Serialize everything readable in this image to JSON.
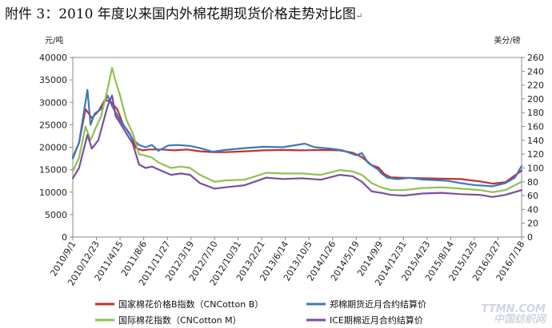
{
  "page": {
    "title": "附件 3：2010 年度以来国内外棉花期现货价格走势对比图",
    "title_mark": "↵"
  },
  "watermark": {
    "line1": "TTMN.COM",
    "line2": "中国纺织网"
  },
  "chart_data": {
    "type": "line",
    "left_unit": "元/吨",
    "right_unit": "美分/磅",
    "y_left": {
      "min": 0,
      "max": 40000,
      "step": 5000
    },
    "y_right": {
      "min": 0,
      "max": 260,
      "step": 20
    },
    "x_range": [
      "2010-09-01",
      "2016-07-18"
    ],
    "x_tick_labels": [
      "2010/9/1",
      "2010/12/23",
      "2011/4/15",
      "2011/8/6",
      "2011/11/27",
      "2012/3/19",
      "2012/7/10",
      "2012/10/31",
      "2013/2/21",
      "2013/6/14",
      "2013/10/5",
      "2014/1/26",
      "2014/5/19",
      "2014/9/9",
      "2014/12/31",
      "2015/4/23",
      "2015/8/14",
      "2015/12/5",
      "2016/3/27",
      "2016/7/18"
    ],
    "grid": false,
    "legend_position": "bottom",
    "series": [
      {
        "name": "国家棉花价格B指数（CNCotton B）",
        "axis": "left",
        "color": "#c0312f",
        "points": [
          [
            "2010-09-01",
            17800
          ],
          [
            "2010-10-01",
            21000
          ],
          [
            "2010-11-01",
            28500
          ],
          [
            "2010-12-01",
            26500
          ],
          [
            "2011-01-01",
            28000
          ],
          [
            "2011-02-01",
            30500
          ],
          [
            "2011-03-01",
            30200
          ],
          [
            "2011-04-01",
            28500
          ],
          [
            "2011-05-01",
            25000
          ],
          [
            "2011-06-01",
            23000
          ],
          [
            "2011-07-01",
            19800
          ],
          [
            "2011-08-01",
            19300
          ],
          [
            "2011-09-01",
            19500
          ],
          [
            "2011-11-01",
            19500
          ],
          [
            "2012-01-01",
            19300
          ],
          [
            "2012-03-01",
            19500
          ],
          [
            "2012-05-01",
            19100
          ],
          [
            "2012-07-01",
            18900
          ],
          [
            "2012-09-01",
            18900
          ],
          [
            "2012-12-01",
            19100
          ],
          [
            "2013-03-01",
            19300
          ],
          [
            "2013-06-01",
            19400
          ],
          [
            "2013-09-01",
            19300
          ],
          [
            "2013-12-01",
            19400
          ],
          [
            "2014-03-01",
            19300
          ],
          [
            "2014-05-01",
            18800
          ],
          [
            "2014-06-15",
            17800
          ],
          [
            "2014-08-01",
            16000
          ],
          [
            "2014-09-01",
            15500
          ],
          [
            "2014-10-01",
            14000
          ],
          [
            "2014-11-01",
            13300
          ],
          [
            "2015-01-01",
            13200
          ],
          [
            "2015-04-01",
            13100
          ],
          [
            "2015-07-01",
            13000
          ],
          [
            "2015-10-01",
            12900
          ],
          [
            "2016-01-01",
            12400
          ],
          [
            "2016-03-01",
            11900
          ],
          [
            "2016-05-01",
            12200
          ],
          [
            "2016-07-18",
            14800
          ]
        ]
      },
      {
        "name": "郑棉期货近月合约结算价",
        "axis": "left",
        "color": "#3c78c0",
        "points": [
          [
            "2010-09-01",
            17500
          ],
          [
            "2010-10-01",
            21000
          ],
          [
            "2010-11-10",
            32800
          ],
          [
            "2010-11-25",
            25000
          ],
          [
            "2010-12-15",
            27500
          ],
          [
            "2011-01-15",
            28500
          ],
          [
            "2011-02-15",
            31500
          ],
          [
            "2011-03-10",
            29000
          ],
          [
            "2011-04-15",
            26000
          ],
          [
            "2011-05-15",
            24000
          ],
          [
            "2011-06-15",
            21800
          ],
          [
            "2011-07-15",
            20500
          ],
          [
            "2011-08-15",
            20000
          ],
          [
            "2011-09-15",
            20500
          ],
          [
            "2011-10-15",
            19200
          ],
          [
            "2011-12-01",
            20400
          ],
          [
            "2012-01-15",
            20500
          ],
          [
            "2012-03-15",
            20300
          ],
          [
            "2012-05-01",
            19800
          ],
          [
            "2012-07-01",
            19000
          ],
          [
            "2012-09-01",
            19400
          ],
          [
            "2012-12-01",
            19800
          ],
          [
            "2013-03-01",
            20100
          ],
          [
            "2013-06-01",
            20000
          ],
          [
            "2013-09-15",
            20800
          ],
          [
            "2013-11-01",
            20000
          ],
          [
            "2014-01-15",
            19700
          ],
          [
            "2014-03-15",
            19300
          ],
          [
            "2014-05-19",
            18200
          ],
          [
            "2014-06-15",
            18700
          ],
          [
            "2014-07-15",
            16500
          ],
          [
            "2014-09-01",
            15000
          ],
          [
            "2014-09-15",
            14200
          ],
          [
            "2014-10-15",
            13200
          ],
          [
            "2014-12-01",
            12900
          ],
          [
            "2015-02-01",
            13200
          ],
          [
            "2015-04-01",
            12800
          ],
          [
            "2015-06-01",
            12700
          ],
          [
            "2015-08-01",
            12500
          ],
          [
            "2015-10-01",
            12000
          ],
          [
            "2015-12-01",
            11600
          ],
          [
            "2016-03-01",
            11300
          ],
          [
            "2016-05-01",
            12000
          ],
          [
            "2016-06-15",
            13200
          ],
          [
            "2016-07-18",
            15800
          ]
        ]
      },
      {
        "name": "国际棉花指数（CNCotton M）",
        "axis": "right",
        "color": "#92c050",
        "points": [
          [
            "2010-09-01",
            95
          ],
          [
            "2010-10-01",
            115
          ],
          [
            "2010-11-01",
            160
          ],
          [
            "2010-11-25",
            140
          ],
          [
            "2010-12-15",
            155
          ],
          [
            "2011-01-15",
            175
          ],
          [
            "2011-02-15",
            215
          ],
          [
            "2011-03-08",
            245
          ],
          [
            "2011-03-25",
            225
          ],
          [
            "2011-04-15",
            205
          ],
          [
            "2011-05-15",
            170
          ],
          [
            "2011-06-15",
            150
          ],
          [
            "2011-07-15",
            120
          ],
          [
            "2011-08-15",
            118
          ],
          [
            "2011-09-15",
            115
          ],
          [
            "2011-10-15",
            108
          ],
          [
            "2011-12-15",
            100
          ],
          [
            "2012-02-01",
            102
          ],
          [
            "2012-03-15",
            100
          ],
          [
            "2012-05-01",
            90
          ],
          [
            "2012-07-10",
            80
          ],
          [
            "2012-09-01",
            82
          ],
          [
            "2012-12-01",
            83
          ],
          [
            "2013-03-15",
            93
          ],
          [
            "2013-06-01",
            92
          ],
          [
            "2013-09-01",
            92
          ],
          [
            "2013-12-01",
            90
          ],
          [
            "2014-03-01",
            97
          ],
          [
            "2014-05-01",
            95
          ],
          [
            "2014-06-15",
            90
          ],
          [
            "2014-08-01",
            78
          ],
          [
            "2014-09-15",
            72
          ],
          [
            "2014-11-01",
            68
          ],
          [
            "2015-01-01",
            68
          ],
          [
            "2015-04-01",
            71
          ],
          [
            "2015-07-01",
            72
          ],
          [
            "2015-10-01",
            70
          ],
          [
            "2016-01-01",
            68
          ],
          [
            "2016-03-01",
            65
          ],
          [
            "2016-05-01",
            68
          ],
          [
            "2016-07-18",
            80
          ]
        ]
      },
      {
        "name": "ICE期棉近月合约结算价",
        "axis": "right",
        "color": "#7a4fa0",
        "points": [
          [
            "2010-09-01",
            85
          ],
          [
            "2010-10-01",
            100
          ],
          [
            "2010-11-10",
            148
          ],
          [
            "2010-12-01",
            128
          ],
          [
            "2011-01-01",
            140
          ],
          [
            "2011-02-15",
            190
          ],
          [
            "2011-03-08",
            205
          ],
          [
            "2011-03-25",
            175
          ],
          [
            "2011-04-15",
            165
          ],
          [
            "2011-05-15",
            150
          ],
          [
            "2011-06-15",
            135
          ],
          [
            "2011-07-15",
            105
          ],
          [
            "2011-08-15",
            100
          ],
          [
            "2011-09-15",
            102
          ],
          [
            "2011-10-15",
            98
          ],
          [
            "2011-12-15",
            90
          ],
          [
            "2012-02-01",
            92
          ],
          [
            "2012-03-15",
            90
          ],
          [
            "2012-05-01",
            78
          ],
          [
            "2012-07-10",
            70
          ],
          [
            "2012-09-01",
            72
          ],
          [
            "2012-12-01",
            75
          ],
          [
            "2013-03-15",
            86
          ],
          [
            "2013-06-01",
            84
          ],
          [
            "2013-09-01",
            85
          ],
          [
            "2013-12-01",
            83
          ],
          [
            "2014-03-01",
            90
          ],
          [
            "2014-05-01",
            88
          ],
          [
            "2014-06-15",
            80
          ],
          [
            "2014-08-01",
            66
          ],
          [
            "2014-09-15",
            64
          ],
          [
            "2014-11-01",
            61
          ],
          [
            "2015-01-01",
            60
          ],
          [
            "2015-04-01",
            63
          ],
          [
            "2015-07-01",
            64
          ],
          [
            "2015-10-01",
            62
          ],
          [
            "2016-01-01",
            61
          ],
          [
            "2016-03-01",
            58
          ],
          [
            "2016-05-01",
            61
          ],
          [
            "2016-07-18",
            68
          ]
        ]
      }
    ]
  }
}
